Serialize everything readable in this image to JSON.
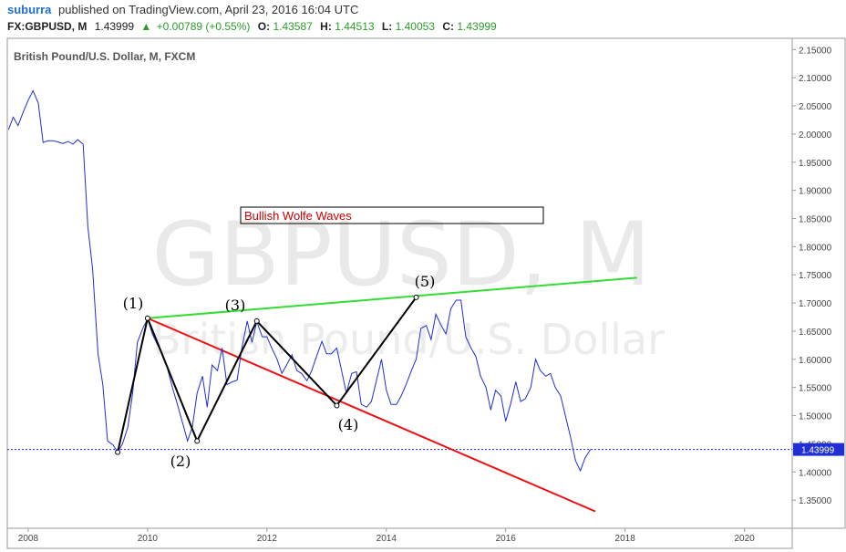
{
  "header": {
    "author": "suburra",
    "published_text": "published on TradingView.com, April 23, 2016 16:04 UTC",
    "symbol_interval": "FX:GBPUSD, M",
    "last": "1.43999",
    "change": "+0.00789 (+0.55%)",
    "open_label": "O:",
    "open": "1.43587",
    "high_label": "H:",
    "high": "1.44513",
    "low_label": "L:",
    "low": "1.40053",
    "close_label": "C:",
    "close": "1.43999"
  },
  "chart_title": "British Pound/U.S. Dollar, M, FXCM",
  "watermark": {
    "line1": "GBPUSD, M",
    "line2": "British Pound/U.S. Dollar"
  },
  "annotation": "Bullish Wolfe Waves",
  "wave_labels": [
    "(1)",
    "(2)",
    "(3)",
    "(4)",
    "(5)"
  ],
  "colors": {
    "price": "#1f2fd4",
    "upper_line": "#33dd33",
    "lower_line": "#ee1111",
    "wave": "#000000",
    "annotation_text": "#cc0000",
    "price_tag": "#1f2fd4",
    "up": "#2a9d2a",
    "axis": "#555555"
  },
  "chart_data": {
    "type": "line",
    "xlim": [
      2007.65,
      2020.8
    ],
    "ylim": [
      1.3,
      2.17
    ],
    "x_ticks": [
      2008,
      2010,
      2012,
      2014,
      2016,
      2018,
      2020
    ],
    "y_ticks": [
      "2.15000",
      "2.10000",
      "2.05000",
      "2.00000",
      "1.95000",
      "1.90000",
      "1.85000",
      "1.80000",
      "1.75000",
      "1.70000",
      "1.65000",
      "1.60000",
      "1.55000",
      "1.50000",
      "1.45000",
      "1.40000",
      "1.35000"
    ],
    "last_price": 1.43999,
    "last_price_label": "1.43999",
    "series": [
      {
        "values": [
          [
            2007.67,
            2.008
          ],
          [
            2007.75,
            2.03
          ],
          [
            2007.83,
            2.015
          ],
          [
            2007.92,
            2.04
          ],
          [
            2008.0,
            2.06
          ],
          [
            2008.08,
            2.077
          ],
          [
            2008.17,
            2.055
          ],
          [
            2008.25,
            1.985
          ],
          [
            2008.33,
            1.988
          ],
          [
            2008.42,
            1.988
          ],
          [
            2008.5,
            1.986
          ],
          [
            2008.58,
            1.983
          ],
          [
            2008.67,
            1.987
          ],
          [
            2008.75,
            1.982
          ],
          [
            2008.83,
            1.99
          ],
          [
            2008.92,
            1.982
          ],
          [
            2009.0,
            1.835
          ],
          [
            2009.08,
            1.76
          ],
          [
            2009.17,
            1.61
          ],
          [
            2009.25,
            1.555
          ],
          [
            2009.33,
            1.455
          ],
          [
            2009.42,
            1.448
          ],
          [
            2009.5,
            1.435
          ],
          [
            2009.58,
            1.45
          ],
          [
            2009.67,
            1.48
          ],
          [
            2009.75,
            1.54
          ],
          [
            2009.83,
            1.63
          ],
          [
            2009.92,
            1.655
          ],
          [
            2010.0,
            1.672
          ],
          [
            2010.08,
            1.645
          ],
          [
            2010.17,
            1.625
          ],
          [
            2010.25,
            1.61
          ],
          [
            2010.33,
            1.585
          ],
          [
            2010.42,
            1.548
          ],
          [
            2010.5,
            1.52
          ],
          [
            2010.58,
            1.49
          ],
          [
            2010.67,
            1.455
          ],
          [
            2010.75,
            1.48
          ],
          [
            2010.83,
            1.54
          ],
          [
            2010.92,
            1.57
          ],
          [
            2011.0,
            1.515
          ],
          [
            2011.08,
            1.59
          ],
          [
            2011.17,
            1.58
          ],
          [
            2011.25,
            1.62
          ],
          [
            2011.33,
            1.555
          ],
          [
            2011.42,
            1.56
          ],
          [
            2011.5,
            1.563
          ],
          [
            2011.58,
            1.62
          ],
          [
            2011.67,
            1.668
          ],
          [
            2011.75,
            1.63
          ],
          [
            2011.83,
            1.667
          ],
          [
            2011.92,
            1.64
          ],
          [
            2012.0,
            1.64
          ],
          [
            2012.08,
            1.62
          ],
          [
            2012.17,
            1.6
          ],
          [
            2012.25,
            1.575
          ],
          [
            2012.33,
            1.59
          ],
          [
            2012.42,
            1.608
          ],
          [
            2012.5,
            1.58
          ],
          [
            2012.58,
            1.575
          ],
          [
            2012.67,
            1.562
          ],
          [
            2012.75,
            1.58
          ],
          [
            2012.83,
            1.605
          ],
          [
            2012.92,
            1.632
          ],
          [
            2013.0,
            1.61
          ],
          [
            2013.08,
            1.61
          ],
          [
            2013.17,
            1.62
          ],
          [
            2013.25,
            1.58
          ],
          [
            2013.33,
            1.54
          ],
          [
            2013.42,
            1.575
          ],
          [
            2013.5,
            1.578
          ],
          [
            2013.58,
            1.52
          ],
          [
            2013.67,
            1.515
          ],
          [
            2013.75,
            1.525
          ],
          [
            2013.83,
            1.56
          ],
          [
            2013.92,
            1.6
          ],
          [
            2014.0,
            1.545
          ],
          [
            2014.08,
            1.52
          ],
          [
            2014.17,
            1.52
          ],
          [
            2014.25,
            1.535
          ],
          [
            2014.33,
            1.555
          ],
          [
            2014.42,
            1.58
          ],
          [
            2014.5,
            1.6
          ],
          [
            2014.58,
            1.655
          ],
          [
            2014.67,
            1.66
          ],
          [
            2014.75,
            1.635
          ],
          [
            2014.83,
            1.68
          ],
          [
            2014.92,
            1.66
          ],
          [
            2015.0,
            1.645
          ],
          [
            2015.08,
            1.69
          ],
          [
            2015.17,
            1.705
          ],
          [
            2015.25,
            1.705
          ],
          [
            2015.33,
            1.64
          ],
          [
            2015.42,
            1.62
          ],
          [
            2015.5,
            1.605
          ],
          [
            2015.58,
            1.57
          ],
          [
            2015.67,
            1.55
          ],
          [
            2015.75,
            1.51
          ],
          [
            2015.83,
            1.545
          ],
          [
            2015.92,
            1.535
          ],
          [
            2016.0,
            1.49
          ],
          [
            2016.08,
            1.52
          ],
          [
            2016.17,
            1.56
          ],
          [
            2016.25,
            1.525
          ],
          [
            2016.33,
            1.53
          ],
          [
            2016.42,
            1.55
          ],
          [
            2016.5,
            1.6
          ],
          [
            2016.58,
            1.58
          ],
          [
            2016.67,
            1.57
          ],
          [
            2016.75,
            1.575
          ],
          [
            2016.83,
            1.55
          ],
          [
            2016.92,
            1.535
          ],
          [
            2017.0,
            1.5
          ],
          [
            2017.08,
            1.465
          ],
          [
            2017.17,
            1.42
          ],
          [
            2017.25,
            1.402
          ],
          [
            2017.33,
            1.425
          ],
          [
            2017.42,
            1.44
          ]
        ]
      }
    ],
    "wolfe_points": [
      [
        2009.5,
        1.435
      ],
      [
        2010.0,
        1.673
      ],
      [
        2010.83,
        1.455
      ],
      [
        2011.83,
        1.668
      ],
      [
        2013.17,
        1.518
      ],
      [
        2014.5,
        1.71
      ]
    ],
    "upper_line": [
      [
        2010.0,
        1.673
      ],
      [
        2018.2,
        1.745
      ]
    ],
    "lower_line": [
      [
        2010.0,
        1.673
      ],
      [
        2017.5,
        1.33
      ]
    ]
  }
}
